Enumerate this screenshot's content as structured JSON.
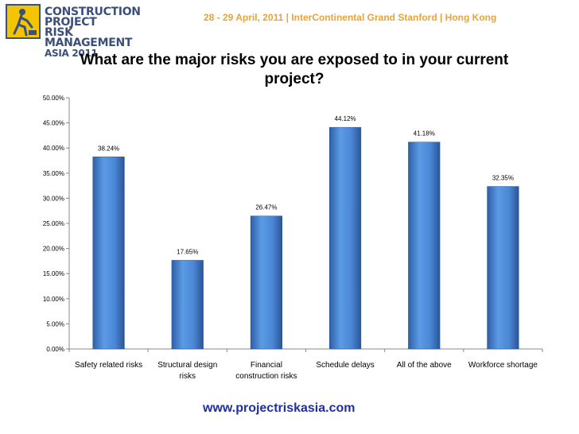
{
  "header": {
    "logo_line1": "CONSTRUCTION PROJECT",
    "logo_line2": "RISK MANAGEMENT",
    "logo_line3": "ASIA 2011",
    "event_info": "28 - 29 April, 2011 | InterContinental Grand Stanford | Hong Kong"
  },
  "chart_data": {
    "type": "bar",
    "title": "What are the major risks you are exposed to in your current project?",
    "categories": [
      [
        "Safety related risks"
      ],
      [
        "Structural design",
        "risks"
      ],
      [
        "Financial",
        "construction risks"
      ],
      [
        "Schedule delays"
      ],
      [
        "All of the  above"
      ],
      [
        "Workforce shortage"
      ]
    ],
    "values": [
      38.24,
      17.65,
      26.47,
      44.12,
      41.18,
      32.35
    ],
    "value_labels": [
      "38.24%",
      "17.65%",
      "26.47%",
      "44.12%",
      "41.18%",
      "32.35%"
    ],
    "ylim": [
      0,
      50
    ],
    "yticks": [
      "0.00%",
      "5.00%",
      "10.00%",
      "15.00%",
      "20.00%",
      "25.00%",
      "30.00%",
      "35.00%",
      "40.00%",
      "45.00%",
      "50.00%"
    ],
    "xlabel": "",
    "ylabel": "",
    "grid": false,
    "bar_color": "#4a86d4"
  },
  "footer": {
    "url": "www.projectriskasia.com"
  }
}
